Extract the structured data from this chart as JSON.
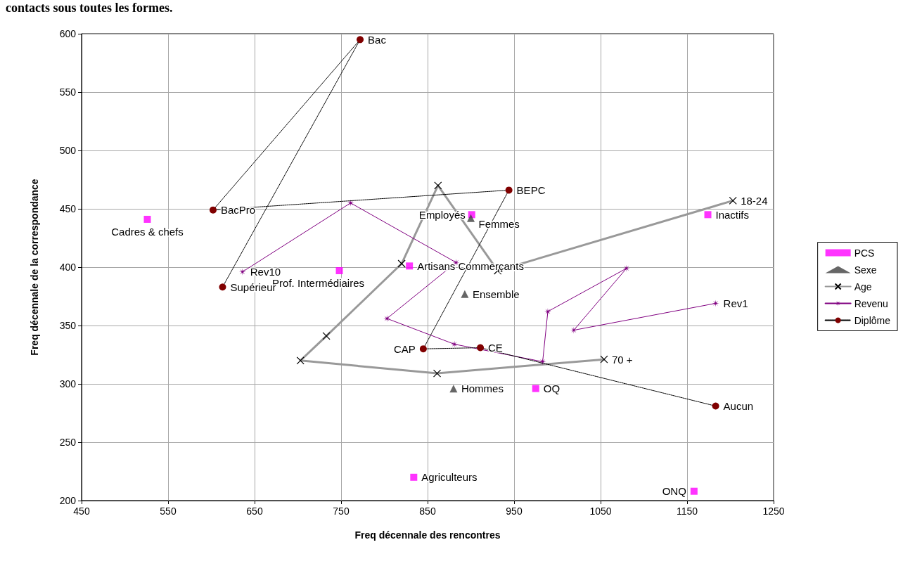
{
  "chart_data": {
    "type": "scatter",
    "xlabel": "Freq décennale des rencontres",
    "ylabel": "Freq décennale de la correspondance",
    "annotations": [
      "contacts sous toutes les formes.",
      {
        "text": "Cadres & chefs",
        "x": 526,
        "y": 441
      },
      {
        "text": "Prof. Intermédiaires",
        "x": 748,
        "y": 397
      },
      {
        "text": "Artisans Commerçants",
        "x": 829,
        "y": 401
      },
      {
        "text": "Employés",
        "x": 901,
        "y": 445
      },
      {
        "text": "Inactifs",
        "x": 1174,
        "y": 445
      },
      {
        "text": "OQ",
        "x": 975,
        "y": 296
      },
      {
        "text": "Agriculteurs",
        "x": 834,
        "y": 220
      },
      {
        "text": "ONQ",
        "x": 1158,
        "y": 208
      },
      {
        "text": "Femmes",
        "x": 900,
        "y": 442
      },
      {
        "text": "Ensemble",
        "x": 893,
        "y": 377
      },
      {
        "text": "Hommes",
        "x": 880,
        "y": 296
      },
      {
        "text": "18-24",
        "x": 1203,
        "y": 457
      },
      {
        "text": "70 +",
        "x": 1054,
        "y": 321
      },
      {
        "text": "Rev10",
        "x": 636,
        "y": 396
      },
      {
        "text": "Rev1",
        "x": 1183,
        "y": 369
      },
      {
        "text": "Supérieur",
        "x": 613,
        "y": 383
      },
      {
        "text": "Bac",
        "x": 772,
        "y": 595
      },
      {
        "text": "BacPro",
        "x": 602,
        "y": 449
      },
      {
        "text": "BEPC",
        "x": 944,
        "y": 466
      },
      {
        "text": "CAP",
        "x": 845,
        "y": 330
      },
      {
        "text": "CE",
        "x": 911,
        "y": 331
      },
      {
        "text": "Aucun",
        "x": 1183,
        "y": 281
      }
    ],
    "xlim": [
      450,
      1250
    ],
    "xticks": [
      450,
      550,
      650,
      750,
      850,
      950,
      1050,
      1150,
      1250
    ],
    "ylim": [
      200,
      600
    ],
    "yticks": [
      200,
      250,
      300,
      350,
      400,
      450,
      500,
      550,
      600
    ],
    "grid": true,
    "legend": "right",
    "series": [
      {
        "name": "PCS",
        "marker": "square",
        "color": "#ff00ff",
        "x": [
          526,
          748,
          829,
          901,
          1174,
          975,
          834,
          1158
        ],
        "values": [
          441,
          397,
          401,
          445,
          445,
          296,
          220,
          208
        ]
      },
      {
        "name": "Sexe",
        "marker": "triangle",
        "color": "#404040",
        "x": [
          900,
          893,
          880
        ],
        "values": [
          442,
          377,
          296
        ]
      },
      {
        "name": "Age",
        "type": "line",
        "marker": "cross",
        "line_style": "solid",
        "color": "#999999",
        "colors": [
          "#000000",
          "#000000",
          "#000000",
          "#000000",
          "#000000",
          "#000000",
          "#000000",
          "#000000"
        ],
        "x": [
          1203,
          931,
          862,
          820,
          733,
          703,
          861,
          1054
        ],
        "values": [
          457,
          397,
          470,
          403,
          341,
          320,
          309,
          321
        ]
      },
      {
        "name": "Revenu",
        "type": "line",
        "marker": "star",
        "line_style": "solid",
        "color": "#800080",
        "x": [
          636,
          761,
          883,
          803,
          881,
          983,
          989,
          1080,
          1019,
          1183
        ],
        "values": [
          396,
          455,
          404,
          356,
          334,
          319,
          362,
          399,
          346,
          369
        ]
      },
      {
        "name": "Diplôme",
        "type": "line",
        "marker": "circle",
        "line_style": "dotted",
        "color": "#000000",
        "colors": [
          "#800000",
          "#800000",
          "#800000",
          "#800000",
          "#800000",
          "#800000",
          "#800000"
        ],
        "x": [
          613,
          772,
          602,
          944,
          845,
          911,
          1183
        ],
        "values": [
          383,
          595,
          449,
          466,
          330,
          331,
          281
        ]
      }
    ]
  }
}
